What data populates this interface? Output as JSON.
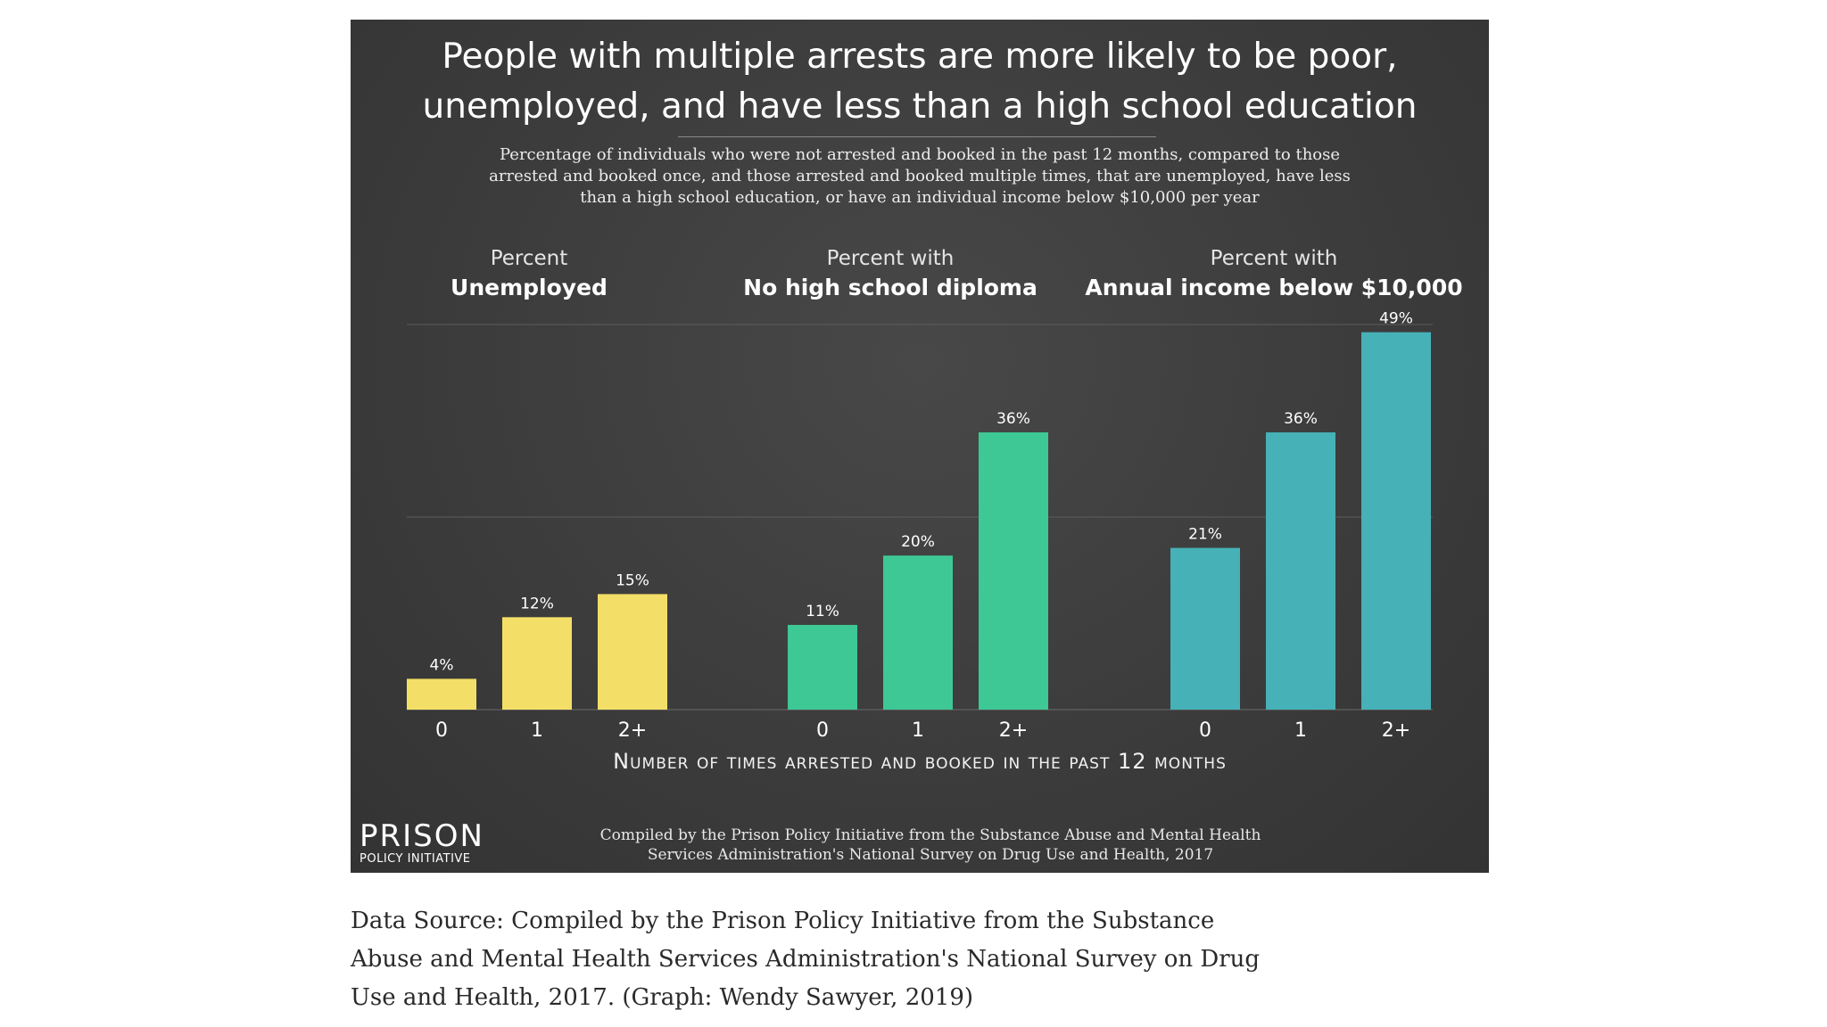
{
  "chart_data": {
    "type": "bar",
    "title": "People with multiple arrests are more likely to be poor, unemployed, and have less than a high school education",
    "subtitle": "Percentage of individuals who were not arrested and booked in the past 12 months, compared to those arrested and booked once, and those arrested and booked multiple times, that are unemployed, have less than a high school education, or have an individual income below $10,000 per year",
    "xlabel": "Number of times arrested and booked in the past 12 months",
    "ylabel": "",
    "ylim": [
      0,
      50
    ],
    "grid": true,
    "categories": [
      "0",
      "1",
      "2+"
    ],
    "series": [
      {
        "name": "Unemployed",
        "header_top": "Percent",
        "header_main": "Unemployed",
        "color": "#f3df67",
        "values": [
          4,
          12,
          15
        ],
        "labels": [
          "4%",
          "12%",
          "15%"
        ]
      },
      {
        "name": "No high school diploma",
        "header_top": "Percent with",
        "header_main": "No high school diploma",
        "color": "#3ec895",
        "values": [
          11,
          20,
          36
        ],
        "labels": [
          "11%",
          "20%",
          "36%"
        ]
      },
      {
        "name": "Annual income below $10,000",
        "header_top": "Percent with",
        "header_main": "Annual income below $10,000",
        "color": "#46b1b7",
        "values": [
          21,
          36,
          49
        ],
        "labels": [
          "21%",
          "36%",
          "49%"
        ]
      }
    ]
  },
  "logo": {
    "top": "PRISON",
    "bottom": "POLICY INITIATIVE"
  },
  "credit": "Compiled by the Prison Policy Initiative from the Substance Abuse and Mental Health Services Administration's National Survey on Drug Use and Health, 2017",
  "caption": "Data Source: Compiled by the Prison Policy Initiative from the Substance Abuse and Mental Health Services Administration's National Survey on Drug Use and Health, 2017. (Graph: Wendy Sawyer, 2019)",
  "colors": {
    "background": "#3c3c3c",
    "text": "#ffffff"
  }
}
